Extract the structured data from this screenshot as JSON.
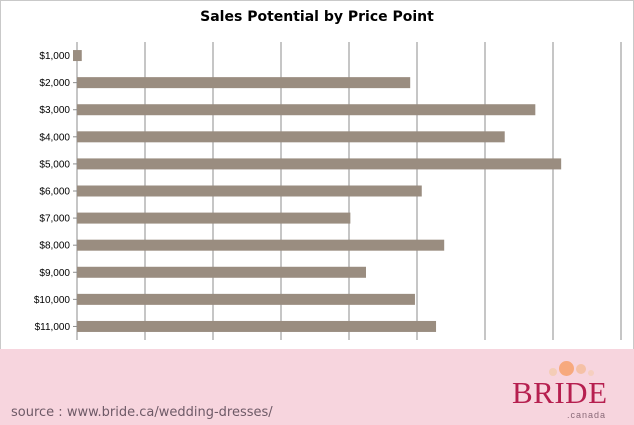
{
  "chart_data": {
    "type": "bar",
    "orientation": "horizontal",
    "title": "Sales Potential by Price Point",
    "categories": [
      "$1,000",
      "$2,000",
      "$3,000",
      "$4,000",
      "$5,000",
      "$6,000",
      "$7,000",
      "$8,000",
      "$9,000",
      "$10,000",
      "$11,000"
    ],
    "values": [
      0.7,
      49,
      67.4,
      62.9,
      71.2,
      50.7,
      40.2,
      54,
      42.5,
      49.7,
      52.8
    ],
    "xlim": [
      0,
      80
    ],
    "grid": true,
    "bar_color": "#9a8d80"
  },
  "footer": {
    "source": "source : www.bride.ca/wedding-dresses/",
    "logo_text": "BRIDE",
    "logo_subtext": ".canada",
    "background": "#f7d5de",
    "logo_color": "#b61f4f"
  }
}
